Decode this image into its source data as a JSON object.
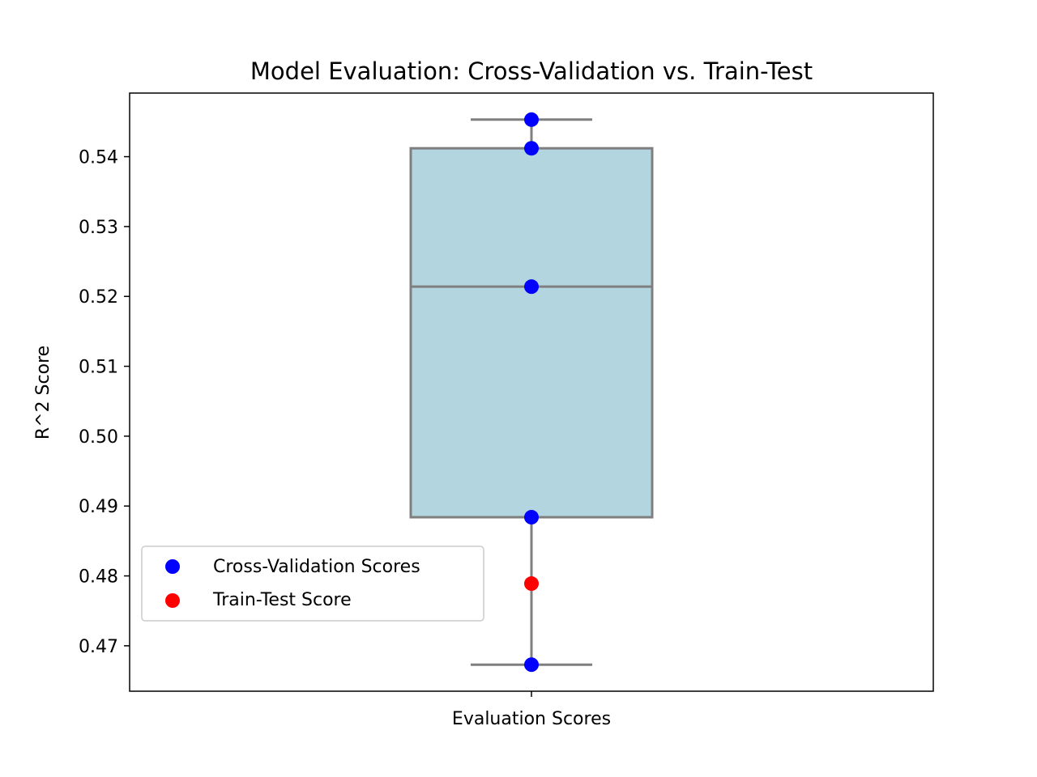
{
  "chart_data": {
    "type": "box",
    "title": "Model Evaluation: Cross-Validation vs. Train-Test",
    "xlabel": "",
    "ylabel": "R^2 Score",
    "categories": [
      "Evaluation Scores"
    ],
    "ylim": [
      0.4635,
      0.5491
    ],
    "yticks": [
      0.47,
      0.48,
      0.49,
      0.5,
      0.51,
      0.52,
      0.53,
      0.54
    ],
    "ytick_labels": [
      "0.47",
      "0.48",
      "0.49",
      "0.50",
      "0.51",
      "0.52",
      "0.53",
      "0.54"
    ],
    "box": {
      "min": 0.4673,
      "q1": 0.4884,
      "median": 0.5214,
      "q3": 0.5412,
      "max": 0.5453,
      "fill_color": "#b3d5e0",
      "line_color": "#7f7f7f"
    },
    "series": [
      {
        "name": "Cross-Validation Scores",
        "type": "scatter",
        "color": "#0000ff",
        "values": [
          0.5453,
          0.5412,
          0.5214,
          0.4884,
          0.4673
        ]
      },
      {
        "name": "Train-Test Score",
        "type": "scatter",
        "color": "#ff0000",
        "values": [
          0.4789
        ]
      }
    ],
    "legend": {
      "placement": "lower-left",
      "entries": [
        "Cross-Validation Scores",
        "Train-Test Score"
      ]
    },
    "grid": false
  }
}
